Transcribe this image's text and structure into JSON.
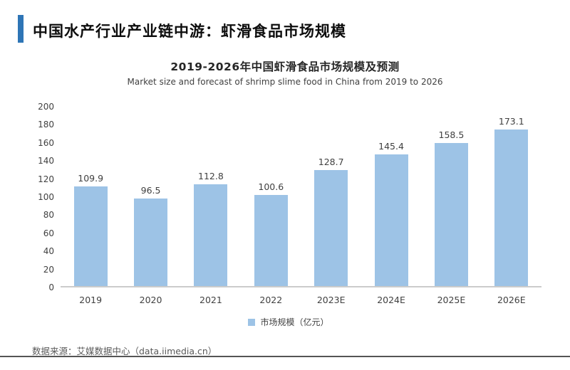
{
  "page": {
    "header": {
      "title": "中国水产行业产业链中游：虾滑食品市场规模",
      "accent_color": "#2E75B6"
    },
    "footer": {
      "source": "数据来源：艾媒数据中心（data.iimedia.cn）"
    }
  },
  "chart_data": {
    "type": "bar",
    "title": "2019-2026年中国虾滑食品市场规模及预测",
    "subtitle": "Market size and forecast of shrimp slime food in China from 2019 to 2026",
    "categories": [
      "2019",
      "2020",
      "2021",
      "2022",
      "2023E",
      "2024E",
      "2025E",
      "2026E"
    ],
    "values": [
      109.9,
      96.5,
      112.8,
      100.6,
      128.7,
      145.4,
      158.5,
      173.1
    ],
    "series_name": "市场规模（亿元）",
    "legend": [
      "市场规模（亿元）"
    ],
    "legend_position": "bottom",
    "ylabel": "",
    "xlabel": "",
    "ylim": [
      0,
      200
    ],
    "yticks": [
      0,
      20,
      40,
      60,
      80,
      100,
      120,
      140,
      160,
      180,
      200
    ],
    "grid": false,
    "bar_color": "#9DC3E6",
    "axis_color": "#cbcbcb",
    "label_color": "#404040"
  }
}
